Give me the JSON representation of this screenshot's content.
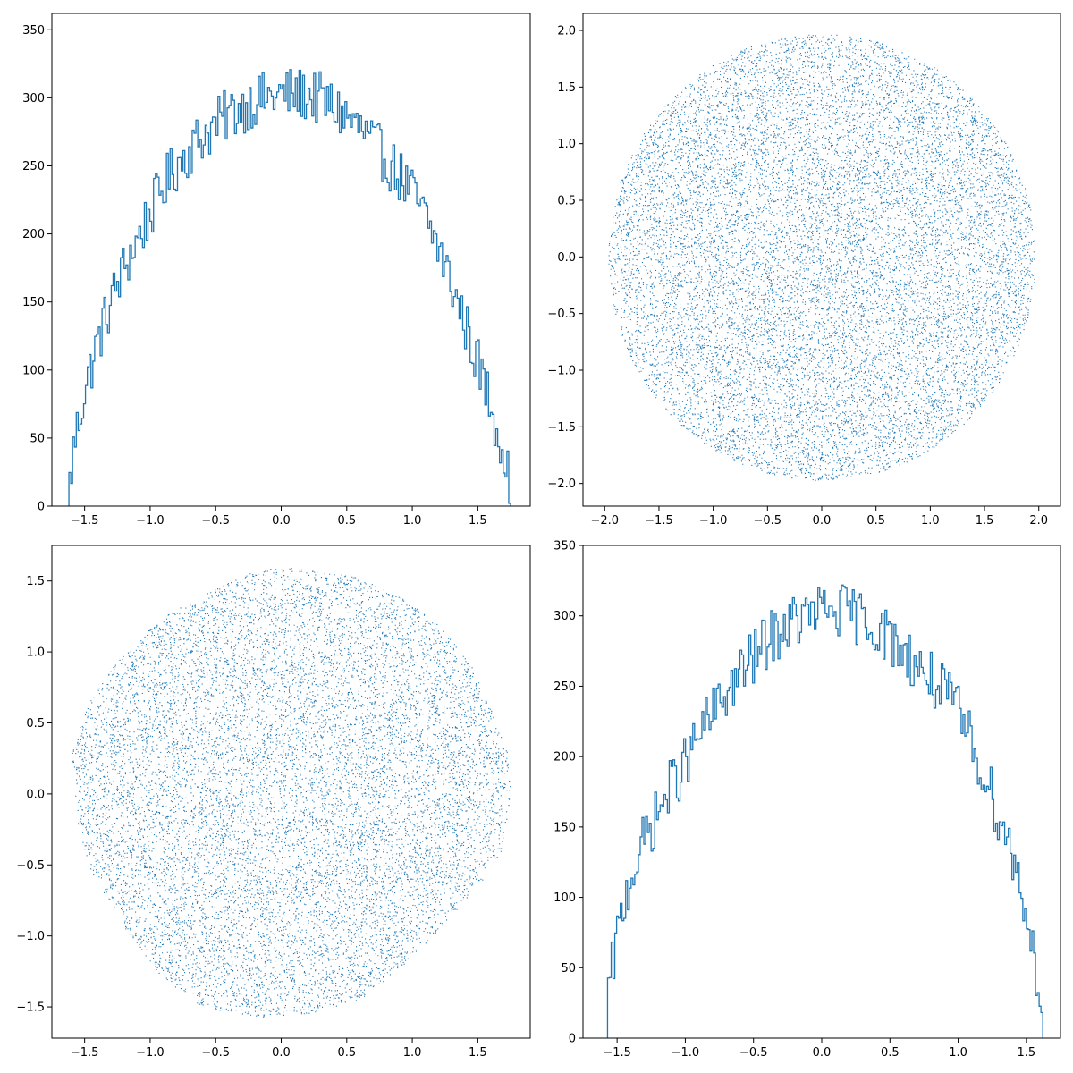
{
  "style": {
    "accent": "#1f77b4",
    "axis": "#000000",
    "background": "#ffffff"
  },
  "chart_data": [
    {
      "type": "histogram",
      "panel": "top-left",
      "title": "",
      "xlabel": "",
      "ylabel": "",
      "xlim": [
        -1.75,
        1.9
      ],
      "ylim": [
        0,
        362
      ],
      "xticks": [
        -1.5,
        -1.0,
        -0.5,
        0.0,
        0.5,
        1.0,
        1.5
      ],
      "xtick_labels": [
        "−1.5",
        "−1.0",
        "−0.5",
        "0.0",
        "0.5",
        "1.0",
        "1.5"
      ],
      "yticks": [
        0,
        50,
        100,
        150,
        200,
        250,
        300,
        350
      ],
      "ytick_labels": [
        "0",
        "50",
        "100",
        "150",
        "200",
        "250",
        "300",
        "350"
      ],
      "bins": [
        -1.62,
        1.75
      ],
      "bin_count": 240,
      "envelope_x": [
        -1.62,
        -1.58,
        -1.5,
        -1.4,
        -1.3,
        -1.2,
        -1.1,
        -1.0,
        -0.9,
        -0.8,
        -0.7,
        -0.6,
        -0.5,
        -0.4,
        -0.3,
        -0.2,
        -0.1,
        0.0,
        0.1,
        0.2,
        0.3,
        0.4,
        0.5,
        0.6,
        0.7,
        0.8,
        0.9,
        1.0,
        1.1,
        1.2,
        1.3,
        1.4,
        1.5,
        1.6,
        1.7,
        1.75
      ],
      "envelope_y": [
        10,
        45,
        85,
        120,
        150,
        175,
        195,
        215,
        235,
        250,
        262,
        272,
        280,
        288,
        293,
        298,
        300,
        302,
        303,
        302,
        299,
        293,
        286,
        277,
        266,
        255,
        243,
        230,
        212,
        190,
        163,
        135,
        105,
        75,
        40,
        10
      ],
      "noise": 20
    },
    {
      "type": "scatter",
      "panel": "top-right",
      "title": "",
      "xlabel": "",
      "ylabel": "",
      "xlim": [
        -2.2,
        2.2
      ],
      "ylim": [
        -2.2,
        2.15
      ],
      "xticks": [
        -2.0,
        -1.5,
        -1.0,
        -0.5,
        0.0,
        0.5,
        1.0,
        1.5,
        2.0
      ],
      "xtick_labels": [
        "−2.0",
        "−1.5",
        "−1.0",
        "−0.5",
        "0.0",
        "0.5",
        "1.0",
        "1.5",
        "2.0"
      ],
      "yticks": [
        -2.0,
        -1.5,
        -1.0,
        -0.5,
        0.0,
        0.5,
        1.0,
        1.5,
        2.0
      ],
      "ytick_labels": [
        "−2.0",
        "−1.5",
        "−1.0",
        "−0.5",
        "0.0",
        "0.5",
        "1.0",
        "1.5",
        "2.0"
      ],
      "region": {
        "shape": "disc",
        "cx": 0.0,
        "cy": 0.0,
        "r": 1.97
      },
      "point_count": 14000
    },
    {
      "type": "scatter",
      "panel": "bottom-left",
      "title": "",
      "xlabel": "",
      "ylabel": "",
      "xlim": [
        -1.75,
        1.9
      ],
      "ylim": [
        -1.72,
        1.75
      ],
      "xticks": [
        -1.5,
        -1.0,
        -0.5,
        0.0,
        0.5,
        1.0,
        1.5
      ],
      "xtick_labels": [
        "−1.5",
        "−1.0",
        "−0.5",
        "0.0",
        "0.5",
        "1.0",
        "1.5"
      ],
      "yticks": [
        -1.5,
        -1.0,
        -0.5,
        0.0,
        0.5,
        1.0,
        1.5
      ],
      "ytick_labels": [
        "−1.5",
        "−1.0",
        "−0.5",
        "0.0",
        "0.5",
        "1.0",
        "1.5"
      ],
      "region": {
        "shape": "polygon",
        "x": [
          0.0,
          0.5,
          0.9,
          1.2,
          1.45,
          1.6,
          1.72,
          1.75,
          1.68,
          1.55,
          1.3,
          1.0,
          0.6,
          0.2,
          -0.2,
          -0.6,
          -0.9,
          -1.2,
          -1.45,
          -1.55,
          -1.6,
          -1.5,
          -1.25,
          -0.9,
          -0.5,
          -0.2
        ],
        "y": [
          1.6,
          1.55,
          1.4,
          1.2,
          0.9,
          0.6,
          0.3,
          0.0,
          -0.4,
          -0.6,
          -0.85,
          -1.15,
          -1.45,
          -1.55,
          -1.57,
          -1.5,
          -1.3,
          -0.95,
          -0.55,
          -0.25,
          0.3,
          0.6,
          0.95,
          1.25,
          1.45,
          1.57
        ]
      },
      "point_count": 12000
    },
    {
      "type": "histogram",
      "panel": "bottom-right",
      "title": "",
      "xlabel": "",
      "ylabel": "",
      "xlim": [
        -1.75,
        1.75
      ],
      "ylim": [
        0,
        350
      ],
      "xticks": [
        -1.5,
        -1.0,
        -0.5,
        0.0,
        0.5,
        1.0,
        1.5
      ],
      "xtick_labels": [
        "−1.5",
        "−1.0",
        "−0.5",
        "0.0",
        "0.5",
        "1.0",
        "1.5"
      ],
      "yticks": [
        0,
        50,
        100,
        150,
        200,
        250,
        300,
        350
      ],
      "ytick_labels": [
        "0",
        "50",
        "100",
        "150",
        "200",
        "250",
        "300",
        "350"
      ],
      "bins": [
        -1.57,
        1.62
      ],
      "bin_count": 240,
      "envelope_x": [
        -1.57,
        -1.52,
        -1.45,
        -1.4,
        -1.3,
        -1.2,
        -1.1,
        -1.0,
        -0.9,
        -0.8,
        -0.7,
        -0.6,
        -0.5,
        -0.4,
        -0.3,
        -0.2,
        -0.1,
        0.0,
        0.1,
        0.2,
        0.3,
        0.4,
        0.5,
        0.6,
        0.7,
        0.8,
        0.9,
        1.0,
        1.1,
        1.2,
        1.3,
        1.4,
        1.5,
        1.55,
        1.6,
        1.62
      ],
      "envelope_y": [
        25,
        60,
        95,
        115,
        140,
        160,
        180,
        195,
        215,
        230,
        245,
        258,
        270,
        282,
        290,
        296,
        300,
        303,
        304,
        302,
        298,
        292,
        284,
        275,
        265,
        255,
        245,
        232,
        210,
        185,
        158,
        130,
        92,
        60,
        35,
        15
      ],
      "noise": 20
    }
  ]
}
